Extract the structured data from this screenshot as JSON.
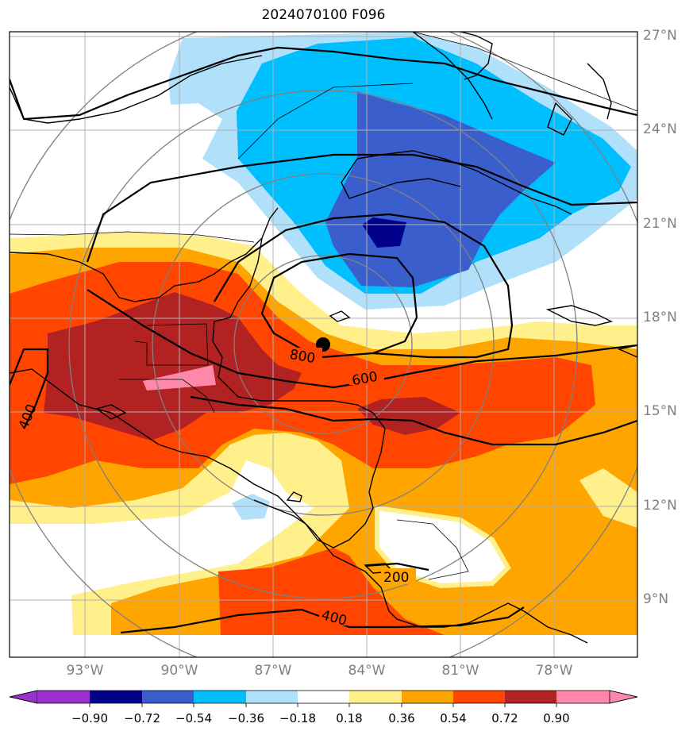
{
  "title": "2024070100 F096",
  "lat_labels": [
    "27°N",
    "24°N",
    "21°N",
    "18°N",
    "15°N",
    "12°N",
    "9°N"
  ],
  "lon_labels": [
    "93°W",
    "90°W",
    "87°W",
    "84°W",
    "81°W",
    "78°W"
  ],
  "contour_labels": [
    "800",
    "600",
    "400",
    "200",
    "400"
  ],
  "colorbar": {
    "ticks": [
      "−0.90",
      "−0.72",
      "−0.54",
      "−0.36",
      "−0.18",
      "0.18",
      "0.36",
      "0.54",
      "0.72",
      "0.90"
    ],
    "colors": [
      "#9932cc",
      "#00008b",
      "#3a5fcd",
      "#00bfff",
      "#b0e0fa",
      "#ffffff",
      "#fff08c",
      "#ffa500",
      "#ff4500",
      "#b22222",
      "#ff88aa"
    ]
  },
  "marker": {
    "lon": -85.4,
    "lat": 17.2
  }
}
